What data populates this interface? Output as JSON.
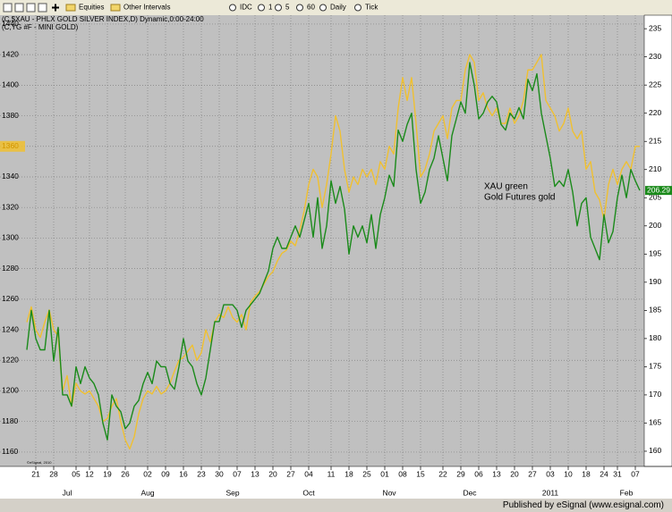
{
  "toolbar": {
    "items": [
      "Equities",
      "Other Intervals",
      "IDC",
      "1",
      "5",
      "60",
      "Daily",
      "Tick"
    ]
  },
  "chart_data": {
    "type": "line",
    "categories": [
      null,
      null,
      "21",
      null,
      null,
      null,
      "28",
      null,
      null,
      null,
      null,
      "05",
      null,
      null,
      "12",
      null,
      null,
      null,
      "19",
      null,
      null,
      null,
      "26",
      null,
      null,
      null,
      null,
      "02",
      null,
      null,
      null,
      "09",
      null,
      null,
      null,
      "16",
      null,
      null,
      null,
      "23",
      null,
      null,
      null,
      "30",
      null,
      null,
      null,
      "07",
      null,
      null,
      null,
      "13",
      null,
      null,
      null,
      "20",
      null,
      null,
      null,
      "27",
      null,
      null,
      null,
      "04",
      null,
      null,
      null,
      null,
      "11",
      null,
      null,
      null,
      "18",
      null,
      null,
      null,
      "25",
      null,
      null,
      null,
      "01",
      null,
      null,
      null,
      "08",
      null,
      null,
      null,
      "15",
      null,
      null,
      null,
      null,
      "22",
      null,
      null,
      null,
      "29",
      null,
      null,
      null,
      "06",
      null,
      null,
      null,
      "13",
      null,
      null,
      null,
      "20",
      null,
      null,
      null,
      "27",
      null,
      null,
      null,
      "03",
      null,
      null,
      null,
      "10",
      null,
      null,
      null,
      "18",
      null,
      null,
      null,
      "24",
      null,
      null,
      "31",
      null,
      null,
      null,
      "07",
      null
    ],
    "months": [
      null,
      null,
      null,
      null,
      null,
      null,
      null,
      null,
      null,
      "Jul",
      null,
      null,
      null,
      null,
      null,
      null,
      null,
      null,
      null,
      null,
      null,
      null,
      null,
      null,
      null,
      null,
      null,
      "Aug",
      null,
      null,
      null,
      null,
      null,
      null,
      null,
      null,
      null,
      null,
      null,
      null,
      null,
      null,
      null,
      null,
      null,
      null,
      "Sep",
      null,
      null,
      null,
      null,
      null,
      null,
      null,
      null,
      null,
      null,
      null,
      null,
      null,
      null,
      null,
      null,
      "Oct",
      null,
      null,
      null,
      null,
      null,
      null,
      null,
      null,
      null,
      null,
      null,
      null,
      null,
      null,
      null,
      null,
      null,
      "Nov",
      null,
      null,
      null,
      null,
      null,
      null,
      null,
      null,
      null,
      null,
      null,
      null,
      null,
      null,
      null,
      null,
      null,
      "Dec",
      null,
      null,
      null,
      null,
      null,
      null,
      null,
      null,
      null,
      null,
      null,
      null,
      null,
      null,
      null,
      null,
      null,
      "2011",
      null,
      null,
      null,
      null,
      null,
      null,
      null,
      null,
      null,
      null,
      null,
      null,
      null,
      null,
      null,
      null,
      "Feb",
      null,
      null,
      null
    ],
    "series": [
      {
        "name": "(C,$XAU - PHLX GOLD SILVER INDEX,D) Dynamic,0:00-24:00",
        "color": "#1a8a1a",
        "axis": "y2",
        "values": [
          178,
          185,
          180,
          178,
          178,
          185,
          176,
          182,
          170,
          170,
          168,
          175,
          172,
          175,
          173,
          172,
          170,
          165,
          162,
          170,
          168,
          167,
          164,
          165,
          168,
          169,
          172,
          174,
          172,
          176,
          175,
          175,
          172,
          171,
          175,
          180,
          176,
          175,
          172,
          170,
          173,
          178,
          183,
          183,
          186,
          186,
          186,
          185,
          182,
          185,
          186,
          187,
          188,
          190,
          192,
          196,
          198,
          196,
          196,
          198,
          200,
          198,
          201,
          204,
          198,
          205,
          196,
          200,
          208,
          204,
          207,
          203,
          195,
          200,
          198,
          200,
          197,
          202,
          196,
          202,
          205,
          209,
          207,
          217,
          215,
          218,
          220,
          210,
          204,
          206,
          210,
          212,
          216,
          212,
          208,
          216,
          219,
          222,
          220,
          229,
          225,
          219,
          220,
          222,
          223,
          222,
          218,
          217,
          220,
          219,
          221,
          219,
          226,
          224,
          227,
          220,
          216,
          212,
          207,
          208,
          207,
          210,
          206,
          200,
          204,
          205,
          198,
          196,
          194,
          202,
          197,
          199,
          205,
          209,
          205,
          210,
          208,
          206.29
        ]
      },
      {
        "name": "(C,YG #F - MINI GOLD)",
        "color": "#f0c030",
        "values": [
          1245,
          1255,
          1240,
          1235,
          1245,
          1253,
          1240,
          1236,
          1200,
          1210,
          1190,
          1205,
          1200,
          1198,
          1200,
          1195,
          1190,
          1180,
          1182,
          1190,
          1195,
          1180,
          1168,
          1162,
          1170,
          1185,
          1195,
          1200,
          1198,
          1203,
          1198,
          1200,
          1205,
          1213,
          1220,
          1222,
          1226,
          1230,
          1220,
          1225,
          1240,
          1232,
          1245,
          1250,
          1248,
          1255,
          1248,
          1245,
          1250,
          1240,
          1258,
          1262,
          1265,
          1270,
          1275,
          1278,
          1285,
          1290,
          1292,
          1298,
          1295,
          1305,
          1318,
          1335,
          1345,
          1340,
          1320,
          1335,
          1355,
          1380,
          1370,
          1345,
          1330,
          1340,
          1335,
          1345,
          1340,
          1345,
          1335,
          1350,
          1345,
          1360,
          1355,
          1385,
          1405,
          1390,
          1405,
          1375,
          1340,
          1345,
          1355,
          1370,
          1375,
          1380,
          1365,
          1385,
          1390,
          1390,
          1410,
          1420,
          1415,
          1390,
          1395,
          1385,
          1380,
          1385,
          1375,
          1375,
          1385,
          1375,
          1380,
          1390,
          1410,
          1410,
          1415,
          1420,
          1390,
          1385,
          1380,
          1370,
          1375,
          1385,
          1370,
          1365,
          1370,
          1345,
          1350,
          1330,
          1325,
          1312,
          1335,
          1345,
          1335,
          1345,
          1350,
          1345,
          1360,
          1360
        ]
      }
    ],
    "ylim": [
      1150.6,
      1445.8
    ],
    "yticks": [
      1440,
      1420,
      1400,
      1380,
      1360,
      1340,
      1320,
      1300,
      1280,
      1260,
      1240,
      1220,
      1200,
      1180,
      1160
    ],
    "y2lim": [
      157.3,
      237.4
    ],
    "y2ticks": [
      235,
      230,
      225,
      220,
      215,
      210,
      205,
      200,
      195,
      190,
      185,
      180,
      175,
      170,
      165,
      160
    ],
    "grid": true,
    "annotations": [
      "XAU green",
      "Gold Futures gold"
    ],
    "watermark": "©eSignal, 2010"
  },
  "footer": "Published by eSignal (www.esignal.com)"
}
